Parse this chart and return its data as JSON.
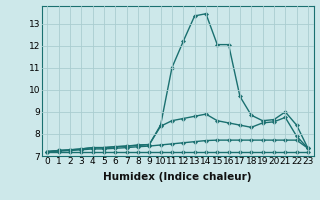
{
  "xlabel": "Humidex (Indice chaleur)",
  "x_values": [
    0,
    1,
    2,
    3,
    4,
    5,
    6,
    7,
    8,
    9,
    10,
    11,
    12,
    13,
    14,
    15,
    16,
    17,
    18,
    19,
    20,
    21,
    22,
    23
  ],
  "line1": [
    7.2,
    7.25,
    7.28,
    7.32,
    7.38,
    7.38,
    7.42,
    7.45,
    7.48,
    7.52,
    8.4,
    11.0,
    12.2,
    13.35,
    13.45,
    12.05,
    12.05,
    9.7,
    8.85,
    8.6,
    8.65,
    9.0,
    8.4,
    7.35
  ],
  "line2": [
    7.2,
    7.25,
    7.28,
    7.32,
    7.38,
    7.38,
    7.42,
    7.45,
    7.5,
    7.52,
    8.35,
    8.6,
    8.7,
    8.8,
    8.9,
    8.6,
    8.5,
    8.4,
    8.3,
    8.5,
    8.55,
    8.75,
    7.9,
    7.35
  ],
  "line3": [
    7.2,
    7.22,
    7.25,
    7.28,
    7.32,
    7.32,
    7.35,
    7.38,
    7.42,
    7.45,
    7.5,
    7.55,
    7.6,
    7.65,
    7.7,
    7.72,
    7.72,
    7.72,
    7.72,
    7.72,
    7.72,
    7.72,
    7.72,
    7.35
  ],
  "line4": [
    7.2,
    7.2,
    7.2,
    7.2,
    7.2,
    7.2,
    7.2,
    7.2,
    7.2,
    7.2,
    7.2,
    7.2,
    7.2,
    7.2,
    7.2,
    7.2,
    7.2,
    7.2,
    7.2,
    7.2,
    7.2,
    7.2,
    7.2,
    7.2
  ],
  "line_color": "#1a7070",
  "bg_color": "#cde8ea",
  "grid_color": "#aacdd0",
  "ylim": [
    7.0,
    13.8
  ],
  "yticks": [
    7,
    8,
    9,
    10,
    11,
    12,
    13
  ],
  "marker": "D",
  "markersize": 2.2,
  "linewidth": 1.0,
  "tick_fontsize": 6.5,
  "label_fontsize": 7.5
}
